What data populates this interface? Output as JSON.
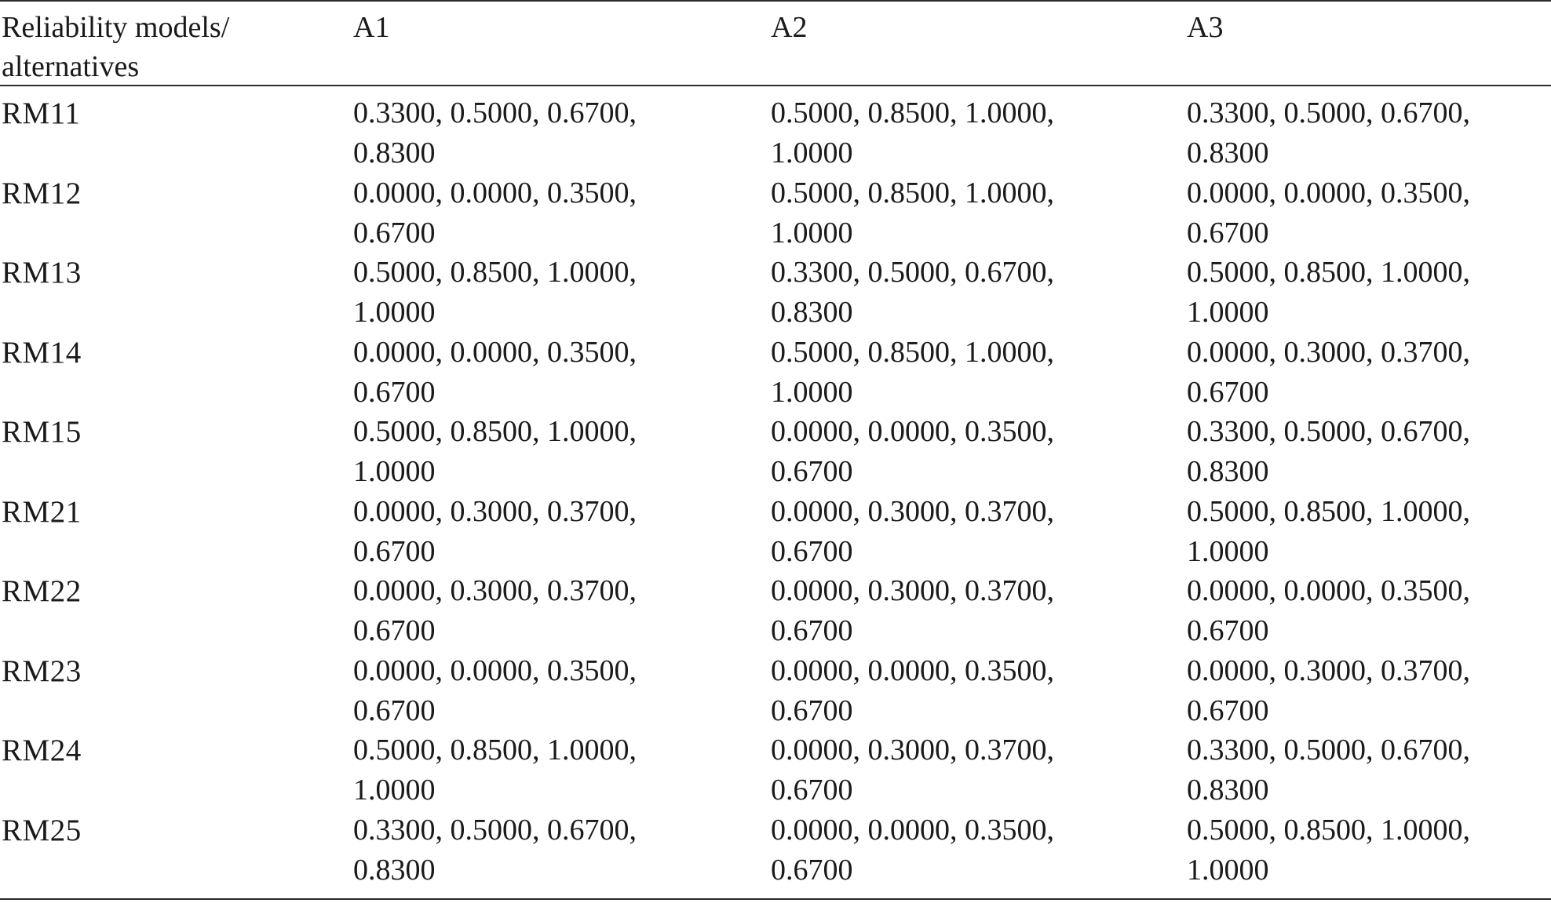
{
  "table": {
    "headers": [
      "Reliability models/\nalternatives",
      "A1",
      "A2",
      "A3"
    ],
    "rows": [
      {
        "label": "RM11",
        "a1": [
          "0.3300, 0.5000, 0.6700,",
          "0.8300"
        ],
        "a2": [
          "0.5000, 0.8500, 1.0000,",
          "1.0000"
        ],
        "a3": [
          "0.3300, 0.5000, 0.6700,",
          "0.8300"
        ]
      },
      {
        "label": "RM12",
        "a1": [
          "0.0000, 0.0000, 0.3500,",
          "0.6700"
        ],
        "a2": [
          "0.5000, 0.8500, 1.0000,",
          "1.0000"
        ],
        "a3": [
          "0.0000, 0.0000, 0.3500,",
          "0.6700"
        ]
      },
      {
        "label": "RM13",
        "a1": [
          "0.5000, 0.8500, 1.0000,",
          "1.0000"
        ],
        "a2": [
          "0.3300, 0.5000, 0.6700,",
          "0.8300"
        ],
        "a3": [
          "0.5000, 0.8500, 1.0000,",
          "1.0000"
        ]
      },
      {
        "label": "RM14",
        "a1": [
          "0.0000, 0.0000, 0.3500,",
          "0.6700"
        ],
        "a2": [
          "0.5000, 0.8500, 1.0000,",
          "1.0000"
        ],
        "a3": [
          "0.0000, 0.3000, 0.3700,",
          "0.6700"
        ]
      },
      {
        "label": "RM15",
        "a1": [
          "0.5000, 0.8500, 1.0000,",
          "1.0000"
        ],
        "a2": [
          "0.0000, 0.0000, 0.3500,",
          "0.6700"
        ],
        "a3": [
          "0.3300, 0.5000, 0.6700,",
          "0.8300"
        ]
      },
      {
        "label": "RM21",
        "a1": [
          "0.0000, 0.3000, 0.3700,",
          "0.6700"
        ],
        "a2": [
          "0.0000, 0.3000, 0.3700,",
          "0.6700"
        ],
        "a3": [
          "0.5000, 0.8500, 1.0000,",
          "1.0000"
        ]
      },
      {
        "label": "RM22",
        "a1": [
          "0.0000, 0.3000, 0.3700,",
          "0.6700"
        ],
        "a2": [
          "0.0000, 0.3000, 0.3700,",
          "0.6700"
        ],
        "a3": [
          "0.0000, 0.0000, 0.3500,",
          "0.6700"
        ]
      },
      {
        "label": "RM23",
        "a1": [
          "0.0000, 0.0000, 0.3500,",
          "0.6700"
        ],
        "a2": [
          "0.0000, 0.0000, 0.3500,",
          "0.6700"
        ],
        "a3": [
          "0.0000, 0.3000, 0.3700,",
          "0.6700"
        ]
      },
      {
        "label": "RM24",
        "a1": [
          "0.5000, 0.8500, 1.0000,",
          "1.0000"
        ],
        "a2": [
          "0.0000, 0.3000, 0.3700,",
          "0.6700"
        ],
        "a3": [
          "0.3300, 0.5000, 0.6700,",
          "0.8300"
        ]
      },
      {
        "label": "RM25",
        "a1": [
          "0.3300, 0.5000, 0.6700,",
          "0.8300"
        ],
        "a2": [
          "0.0000, 0.0000, 0.3500,",
          "0.6700"
        ],
        "a3": [
          "0.5000, 0.8500, 1.0000,",
          "1.0000"
        ]
      }
    ]
  }
}
